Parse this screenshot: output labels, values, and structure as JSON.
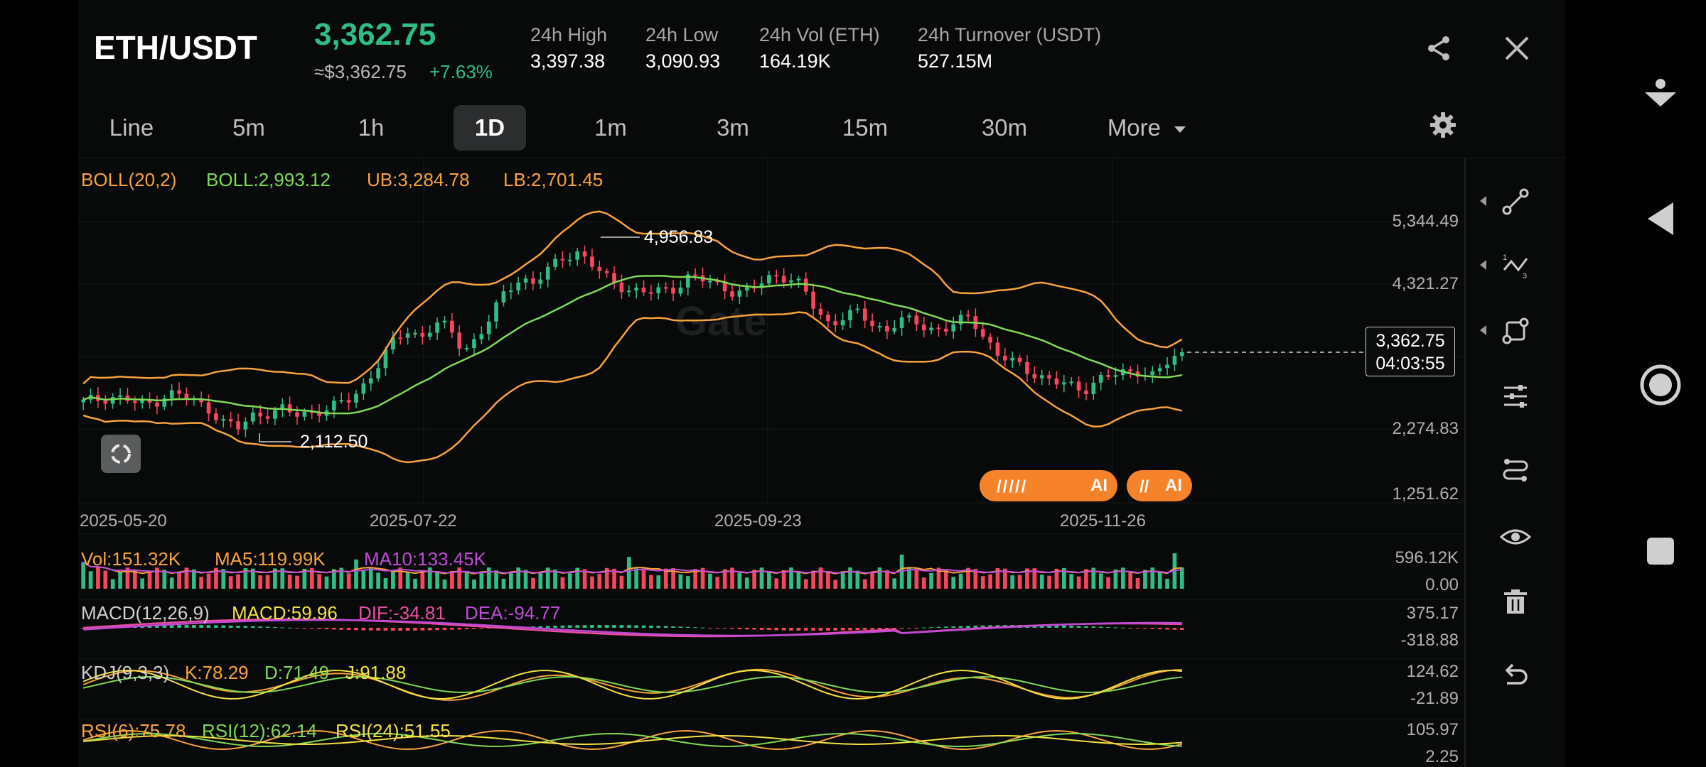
{
  "header": {
    "pair": "ETH/USDT",
    "last_price": "3,362.75",
    "fiat_price": "≈$3,362.75",
    "change_pct": "+7.63%",
    "stats": [
      {
        "label": "24h High",
        "value": "3,397.38"
      },
      {
        "label": "24h Low",
        "value": "3,090.93"
      },
      {
        "label": "24h Vol (ETH)",
        "value": "164.19K"
      },
      {
        "label": "24h Turnover (USDT)",
        "value": "527.15M"
      }
    ],
    "share_icon": "share-icon",
    "close_icon": "close-icon"
  },
  "intervals": {
    "items": [
      "Line",
      "5m",
      "1h",
      "1D",
      "1m",
      "3m",
      "15m",
      "30m",
      "More"
    ],
    "active": "1D",
    "settings_icon": "gear-icon"
  },
  "indicators": {
    "boll": {
      "name": "BOLL(20,2)",
      "mid": "BOLL:2,993.12",
      "ub": "UB:3,284.78",
      "lb": "LB:2,701.45"
    },
    "vol": {
      "name": "Vol:151.32K",
      "ma5": "MA5:119.99K",
      "ma10": "MA10:133.45K"
    },
    "macd": {
      "name": "MACD(12,26,9)",
      "macd": "MACD:59.96",
      "dif": "DIF:-34.81",
      "dea": "DEA:-94.77"
    },
    "kdj": {
      "name": "KDJ(9,3,3)",
      "k": "K:78.29",
      "d": "D:71.49",
      "j": "J:91.88"
    },
    "rsi": {
      "name": "RSI(6):75.78",
      "rsi12": "RSI(12):62.14",
      "rsi24": "RSI(24):51.55"
    }
  },
  "main_axis": [
    "5,344.49",
    "4,321.27",
    "3,362.75",
    "2,274.83",
    "1,251.62"
  ],
  "price_tag": {
    "price": "3,362.75",
    "countdown": "04:03:55"
  },
  "annotations": {
    "high": "4,956.83",
    "low": "2,112.50"
  },
  "dates": [
    "2025-05-20",
    "2025-07-22",
    "2025-09-23",
    "2025-11-26"
  ],
  "sub_axes": {
    "vol": [
      "596.12K",
      "0.00"
    ],
    "macd": [
      "375.17",
      "-318.88"
    ],
    "kdj": [
      "124.62",
      "-21.89"
    ],
    "rsi": [
      "105.97",
      "2.25"
    ]
  },
  "ai_badges": [
    "AI",
    "AI"
  ],
  "watermark": "Gate",
  "colors": {
    "up": "#2ebd85",
    "down": "#f6465d",
    "orange": "#f7a23c",
    "green_ind": "#7ed957",
    "purple": "#c04ad8",
    "pink": "#e84fa3",
    "yellow": "#f0e040",
    "accent_ai": "#f6832a"
  },
  "chart_data": {
    "type": "candlestick",
    "x": [
      "2025-05-20",
      "2025-07-22",
      "2025-09-23",
      "2025-11-26"
    ],
    "high_label": 4956.83,
    "low_label": 2112.5,
    "last": 3362.75,
    "yticks": [
      5344.49,
      4321.27,
      3362.75,
      2274.83,
      1251.62
    ],
    "close_path": [
      2600,
      2650,
      2700,
      2650,
      2550,
      2600,
      2750,
      2700,
      2600,
      2500,
      2300,
      2200,
      2400,
      2450,
      2500,
      2400,
      2450,
      2500,
      2550,
      2650,
      2900,
      3200,
      3500,
      3700,
      3600,
      3800,
      3700,
      3400,
      3600,
      3900,
      4300,
      4500,
      4400,
      4600,
      4800,
      4900,
      4700,
      4500,
      4400,
      4300,
      4250,
      4300,
      4350,
      4500,
      4450,
      4400,
      4300,
      4250,
      4400,
      4550,
      4500,
      4350,
      4000,
      3800,
      3900,
      3950,
      3800,
      3700,
      3850,
      3800,
      3750,
      3700,
      3800,
      3900,
      3600,
      3300,
      3200,
      3100,
      3000,
      2900,
      2850,
      2800,
      2950,
      3000,
      3050,
      3100,
      3000,
      3200,
      3362.75
    ],
    "sub_charts": [
      "Vol",
      "MACD",
      "KDJ",
      "RSI"
    ]
  }
}
